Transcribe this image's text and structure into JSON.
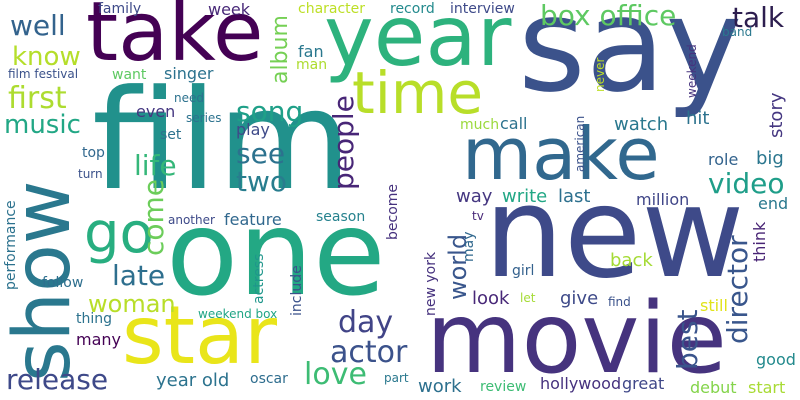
{
  "words": [
    {
      "text": "say",
      "color": "#3b528b",
      "vertical": false
    },
    {
      "text": "film",
      "color": "#21918c",
      "vertical": false
    },
    {
      "text": "new",
      "color": "#3e4a89",
      "vertical": false
    },
    {
      "text": "one",
      "color": "#23a884",
      "vertical": false
    },
    {
      "text": "movie",
      "color": "#46337e",
      "vertical": false
    },
    {
      "text": "year",
      "color": "#2db27d",
      "vertical": false
    },
    {
      "text": "take",
      "color": "#440154",
      "vertical": false
    },
    {
      "text": "show",
      "color": "#2a788e",
      "vertical": true
    },
    {
      "text": "star",
      "color": "#e9e51a",
      "vertical": false
    },
    {
      "text": "make",
      "color": "#31688e",
      "vertical": false
    },
    {
      "text": "time",
      "color": "#b8de29",
      "vertical": false
    },
    {
      "text": "go",
      "color": "#28ae80",
      "vertical": false
    },
    {
      "text": "box office",
      "color": "#5ec962",
      "vertical": false
    },
    {
      "text": "talk",
      "color": "#2d1e4f",
      "vertical": false
    },
    {
      "text": "well",
      "color": "#33638d",
      "vertical": false
    },
    {
      "text": "know",
      "color": "#b5de2b",
      "vertical": false
    },
    {
      "text": "first",
      "color": "#addc30",
      "vertical": false
    },
    {
      "text": "music",
      "color": "#22a785",
      "vertical": false
    },
    {
      "text": "song",
      "color": "#1fa088",
      "vertical": false
    },
    {
      "text": "see",
      "color": "#2c728e",
      "vertical": false
    },
    {
      "text": "life",
      "color": "#35b779",
      "vertical": false
    },
    {
      "text": "two",
      "color": "#287d8e",
      "vertical": false
    },
    {
      "text": "late",
      "color": "#2e6f8e",
      "vertical": false
    },
    {
      "text": "woman",
      "color": "#b8de29",
      "vertical": false
    },
    {
      "text": "day",
      "color": "#414487",
      "vertical": false
    },
    {
      "text": "actor",
      "color": "#3b528b",
      "vertical": false
    },
    {
      "text": "love",
      "color": "#3dbc74",
      "vertical": false
    },
    {
      "text": "release",
      "color": "#3e4989",
      "vertical": false
    },
    {
      "text": "video",
      "color": "#1f9e89",
      "vertical": false
    },
    {
      "text": "director",
      "color": "#39568c",
      "vertical": true
    },
    {
      "text": "best",
      "color": "#3a548c",
      "vertical": true
    },
    {
      "text": "people",
      "color": "#482677",
      "vertical": true
    },
    {
      "text": "come",
      "color": "#6ccd5a",
      "vertical": true
    },
    {
      "text": "album",
      "color": "#75d054",
      "vertical": true
    },
    {
      "text": "world",
      "color": "#39568c",
      "vertical": true
    },
    {
      "text": "way",
      "color": "#453781",
      "vertical": false
    },
    {
      "text": "write",
      "color": "#22a785",
      "vertical": false
    },
    {
      "text": "last",
      "color": "#2d708e",
      "vertical": false
    },
    {
      "text": "million",
      "color": "#404688",
      "vertical": false
    },
    {
      "text": "watch",
      "color": "#2a788e",
      "vertical": false
    },
    {
      "text": "hit",
      "color": "#2c728e",
      "vertical": false
    },
    {
      "text": "story",
      "color": "#453781",
      "vertical": true
    },
    {
      "text": "big",
      "color": "#2a768e",
      "vertical": false
    },
    {
      "text": "role",
      "color": "#33638d",
      "vertical": false
    },
    {
      "text": "end",
      "color": "#2a788e",
      "vertical": false
    },
    {
      "text": "think",
      "color": "#482475",
      "vertical": true
    },
    {
      "text": "look",
      "color": "#482878",
      "vertical": false
    },
    {
      "text": "give",
      "color": "#3e4a89",
      "vertical": false
    },
    {
      "text": "back",
      "color": "#a5db36",
      "vertical": false
    },
    {
      "text": "still",
      "color": "#e0e318",
      "vertical": false
    },
    {
      "text": "good",
      "color": "#238a8d",
      "vertical": false
    },
    {
      "text": "start",
      "color": "#a8db34",
      "vertical": false
    },
    {
      "text": "debut",
      "color": "#84d44b",
      "vertical": false
    },
    {
      "text": "great",
      "color": "#3f4788",
      "vertical": false
    },
    {
      "text": "hollywood",
      "color": "#46327e",
      "vertical": false
    },
    {
      "text": "review",
      "color": "#3dbc74",
      "vertical": false
    },
    {
      "text": "work",
      "color": "#2d708e",
      "vertical": false
    },
    {
      "text": "year old",
      "color": "#2c738e",
      "vertical": false
    },
    {
      "text": "oscar",
      "color": "#2e6d8e",
      "vertical": false
    },
    {
      "text": "part",
      "color": "#2a788e",
      "vertical": false
    },
    {
      "text": "many",
      "color": "#440154",
      "vertical": false
    },
    {
      "text": "thing",
      "color": "#2c728e",
      "vertical": false
    },
    {
      "text": "follow",
      "color": "#2e6f8e",
      "vertical": false
    },
    {
      "text": "performance",
      "color": "#2c728e",
      "vertical": true
    },
    {
      "text": "weekend box",
      "color": "#21a585",
      "vertical": false
    },
    {
      "text": "actress",
      "color": "#1f968b",
      "vertical": true
    },
    {
      "text": "include",
      "color": "#3b528b",
      "vertical": true
    },
    {
      "text": "new york",
      "color": "#46327e",
      "vertical": true
    },
    {
      "text": "may",
      "color": "#31688e",
      "vertical": true
    },
    {
      "text": "girl",
      "color": "#34618d",
      "vertical": false
    },
    {
      "text": "let",
      "color": "#a5db36",
      "vertical": false
    },
    {
      "text": "find",
      "color": "#3b528b",
      "vertical": false
    },
    {
      "text": "tv",
      "color": "#482878",
      "vertical": false
    },
    {
      "text": "become",
      "color": "#46327e",
      "vertical": true
    },
    {
      "text": "season",
      "color": "#26828e",
      "vertical": false
    },
    {
      "text": "feature",
      "color": "#31688e",
      "vertical": false
    },
    {
      "text": "another",
      "color": "#3e4a89",
      "vertical": false
    },
    {
      "text": "american",
      "color": "#3b528b",
      "vertical": true
    },
    {
      "text": "call",
      "color": "#2c728e",
      "vertical": false
    },
    {
      "text": "much",
      "color": "#9bd93c",
      "vertical": false
    },
    {
      "text": "play",
      "color": "#3e4a89",
      "vertical": false
    },
    {
      "text": "set",
      "color": "#2c728e",
      "vertical": false
    },
    {
      "text": "series",
      "color": "#2c728e",
      "vertical": false
    },
    {
      "text": "even",
      "color": "#453781",
      "vertical": false
    },
    {
      "text": "need",
      "color": "#2c728e",
      "vertical": false
    },
    {
      "text": "top",
      "color": "#31688e",
      "vertical": false
    },
    {
      "text": "turn",
      "color": "#3b528b",
      "vertical": false
    },
    {
      "text": "singer",
      "color": "#2c728e",
      "vertical": false
    },
    {
      "text": "want",
      "color": "#5ec962",
      "vertical": false
    },
    {
      "text": "film festival",
      "color": "#3b528b",
      "vertical": false
    },
    {
      "text": "family",
      "color": "#3e4a89",
      "vertical": false
    },
    {
      "text": "week",
      "color": "#482878",
      "vertical": false
    },
    {
      "text": "fan",
      "color": "#2a788e",
      "vertical": false
    },
    {
      "text": "man",
      "color": "#addc30",
      "vertical": false
    },
    {
      "text": "character",
      "color": "#bddf26",
      "vertical": false
    },
    {
      "text": "record",
      "color": "#238a8d",
      "vertical": false
    },
    {
      "text": "interview",
      "color": "#3e4a89",
      "vertical": false
    },
    {
      "text": "weekend",
      "color": "#46337e",
      "vertical": true
    },
    {
      "text": "never",
      "color": "#bddf26",
      "vertical": true
    },
    {
      "text": "band",
      "color": "#2a788e",
      "vertical": false
    }
  ]
}
